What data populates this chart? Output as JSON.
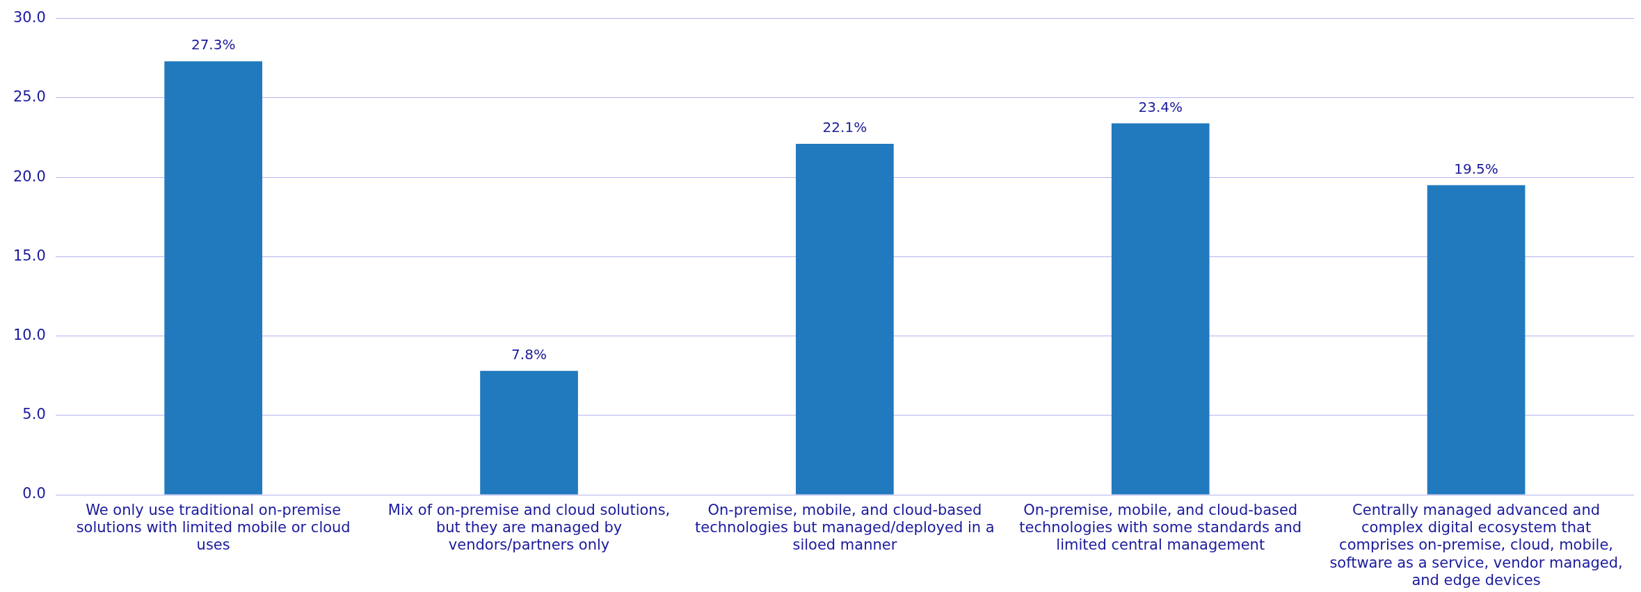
{
  "chart_data": {
    "type": "bar",
    "categories": [
      "We only use traditional on-premise solutions with limited mobile or cloud uses",
      "Mix of on-premise and cloud solutions, but they are managed by vendors/partners only",
      "On-premise, mobile, and cloud-based technologies but managed/deployed in a siloed manner",
      "On-premise, mobile, and cloud-based technologies with some standards and limited central management",
      "Centrally managed advanced and complex digital ecosystem that comprises on-premise, cloud, mobile, software as a service, vendor managed, and edge devices"
    ],
    "values": [
      27.3,
      7.8,
      22.1,
      23.4,
      19.5
    ],
    "value_labels": [
      "27.3%",
      "7.8%",
      "22.1%",
      "23.4%",
      "19.5%"
    ],
    "color": "#2179be",
    "ylim": [
      0,
      30
    ],
    "yticks": [
      {
        "value": 0,
        "label": "0.0"
      },
      {
        "value": 5,
        "label": "5.0"
      },
      {
        "value": 10,
        "label": "10.0"
      },
      {
        "value": 15,
        "label": "15.0"
      },
      {
        "value": 20,
        "label": "20.0"
      },
      {
        "value": 25,
        "label": "25.0"
      },
      {
        "value": 30,
        "label": "30.0"
      }
    ],
    "grid": "y",
    "legend": false
  }
}
